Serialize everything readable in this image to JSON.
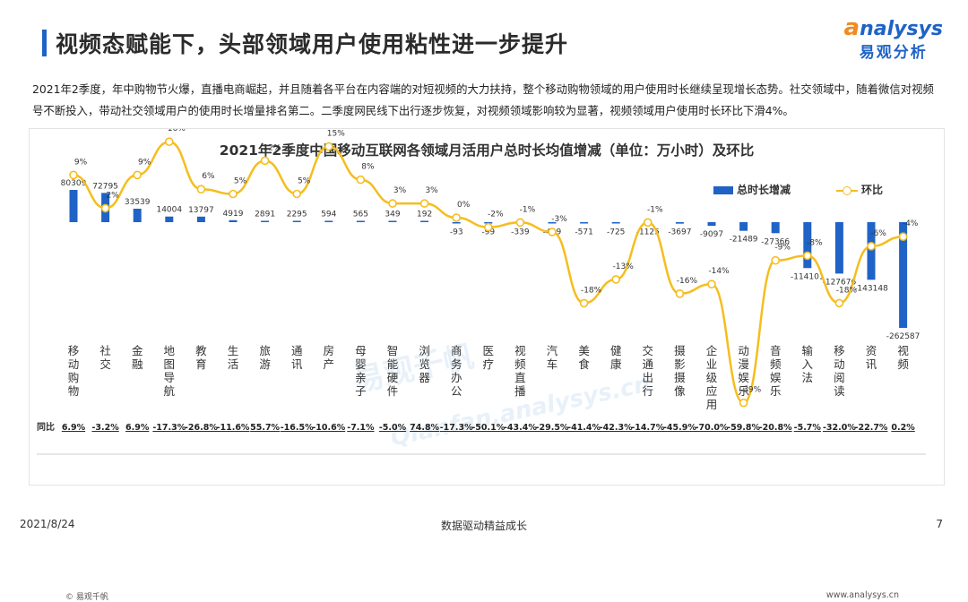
{
  "header": {
    "title": "视频态赋能下，头部领域用户使用粘性进一步提升",
    "logo_word_a": "a",
    "logo_word_rest": "nalysys",
    "logo_cn": "易观分析"
  },
  "description": "2021年2季度，年中购物节火爆，直播电商崛起，并且随着各平台在内容端的对短视频的大力扶持，整个移动购物领域的用户使用时长继续呈现增长态势。社交领域中，随着微信对视频号不断投入，带动社交领域用户的使用时长增量排名第二。二季度网民线下出行逐步恢复，对视频领域影响较为显著，视频领域用户使用时长环比下滑4%。",
  "watermark": {
    "text_cn": "易观千帆",
    "text_en": "Qianfan.analysys.cn"
  },
  "legend": {
    "bar_label": "总时长增减",
    "line_label": "环比"
  },
  "yoy_label": "同比",
  "source": "© 易观千帆",
  "site": "www.analysys.cn",
  "footer": {
    "date": "2021/8/24",
    "center": "数据驱动精益成长",
    "page": "7"
  },
  "colors": {
    "bar": "#1f63c6",
    "line": "#f5bd1f",
    "title_accent": "#1f63c6",
    "logo_orange": "#f08a24"
  },
  "chart_data": {
    "type": "bar",
    "title": "2021年2季度中国移动互联网各领域月活用户总时长均值增减（单位：万小时）及环比",
    "categories": [
      "移动购物",
      "社交",
      "金融",
      "地图导航",
      "教育",
      "生活",
      "旅游",
      "通讯",
      "房产",
      "母婴亲子",
      "智能硬件",
      "浏览器",
      "商务办公",
      "医疗",
      "视频直播",
      "汽车",
      "美食",
      "健康",
      "交通出行",
      "摄影摄像",
      "企业级应用",
      "动漫娱乐",
      "音频娱乐",
      "输入法",
      "移动阅读",
      "资讯",
      "视频"
    ],
    "series": [
      {
        "name": "总时长增减",
        "type": "bar",
        "values": [
          80309,
          72795,
          33539,
          14004,
          13797,
          4919,
          2891,
          2295,
          594,
          565,
          349,
          192,
          -93,
          -99,
          -339,
          -439,
          -571,
          -725,
          -1125,
          -3697,
          -9097,
          -21489,
          -27366,
          -114101,
          -127676,
          -143148,
          -262587
        ]
      },
      {
        "name": "环比",
        "type": "line",
        "unit": "%",
        "values": [
          9,
          2,
          9,
          16,
          6,
          5,
          12,
          5,
          15,
          8,
          3,
          3,
          0,
          -2,
          -1,
          -3,
          -18,
          -13,
          -1,
          -16,
          -14,
          -39,
          -9,
          -8,
          -18,
          -6,
          -4
        ]
      }
    ],
    "yoy": [
      "6.9%",
      "-3.2%",
      "6.9%",
      "-17.3%",
      "-26.8%",
      "-11.6%",
      "55.7%",
      "-16.5%",
      "-10.6%",
      "-7.1%",
      "-5.0%",
      "74.8%",
      "-17.3%",
      "-50.1%",
      "-43.4%",
      "-29.5%",
      "-41.4%",
      "-42.3%",
      "-14.7%",
      "-45.9%",
      "-70.0%",
      "-59.8%",
      "-20.8%",
      "-5.7%",
      "-32.0%",
      "-22.7%",
      "0.2%"
    ],
    "legend_position": "top-right"
  }
}
